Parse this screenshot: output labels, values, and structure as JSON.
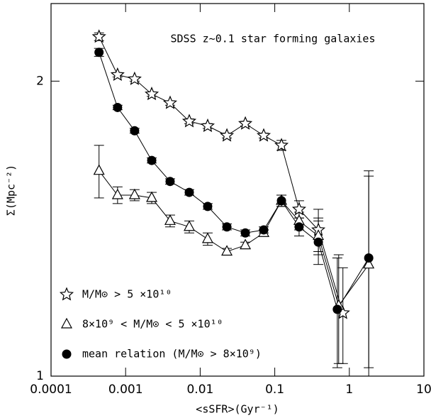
{
  "chart_data": {
    "type": "line",
    "annotation": "SDSS z~0.1 star forming galaxies",
    "x_label": "<sSFR>(Gyr⁻¹)",
    "y_label": "Σ(Mpc⁻²)",
    "xscale": "log",
    "yscale": "log",
    "xlim": [
      0.0001,
      10
    ],
    "xticks": [
      0.0001,
      0.001,
      0.01,
      0.1,
      1,
      10
    ],
    "ylim": [
      1,
      2.4
    ],
    "yticks": [
      1,
      2
    ],
    "legend": "lower left",
    "series": [
      {
        "name": "M/M⊙ > 5 ×10¹⁰",
        "color": "#000000",
        "marker": "star",
        "x": [
          0.00044,
          0.00078,
          0.00132,
          0.00224,
          0.00395,
          0.00714,
          0.0126,
          0.0228,
          0.0403,
          0.0711,
          0.123,
          0.212,
          0.384,
          0.82
        ],
        "values": [
          2.22,
          2.03,
          2.01,
          1.94,
          1.9,
          1.82,
          1.8,
          1.76,
          1.81,
          1.76,
          1.72,
          1.48,
          1.41,
          1.16
        ],
        "errors": [
          0.02,
          0.01,
          0.01,
          0.01,
          0.01,
          0.01,
          0.01,
          0.01,
          0.01,
          0.01,
          0.02,
          0.03,
          0.07,
          0.13
        ]
      },
      {
        "name": "8×10⁹ < M/M⊙ < 5 ×10¹⁰",
        "color": "#000000",
        "marker": "triangle",
        "x": [
          0.00044,
          0.00078,
          0.00132,
          0.00224,
          0.00395,
          0.00714,
          0.0126,
          0.0228,
          0.0403,
          0.0711,
          0.123,
          0.212,
          0.384,
          0.72,
          1.82
        ],
        "values": [
          1.62,
          1.53,
          1.53,
          1.52,
          1.44,
          1.42,
          1.38,
          1.34,
          1.36,
          1.4,
          1.51,
          1.44,
          1.39,
          1.18,
          1.3
        ],
        "errors": [
          0.1,
          0.03,
          0.02,
          0.02,
          0.02,
          0.02,
          0.02,
          0.01,
          0.01,
          0.01,
          0.02,
          0.03,
          0.06,
          0.15,
          0.3
        ]
      },
      {
        "name": "mean relation (M/M⊙ > 8×10⁹)",
        "color": "#000000",
        "marker": "circle",
        "x": [
          0.00044,
          0.00078,
          0.00132,
          0.00224,
          0.00395,
          0.00714,
          0.0126,
          0.0228,
          0.0403,
          0.0711,
          0.123,
          0.212,
          0.384,
          0.69,
          1.82
        ],
        "values": [
          2.14,
          1.88,
          1.78,
          1.66,
          1.58,
          1.54,
          1.49,
          1.42,
          1.4,
          1.41,
          1.51,
          1.42,
          1.37,
          1.17,
          1.32
        ],
        "errors": [
          0.02,
          0.01,
          0.01,
          0.01,
          0.01,
          0.01,
          0.01,
          0.01,
          0.01,
          0.01,
          0.02,
          0.03,
          0.07,
          0.15,
          0.3
        ]
      }
    ]
  }
}
